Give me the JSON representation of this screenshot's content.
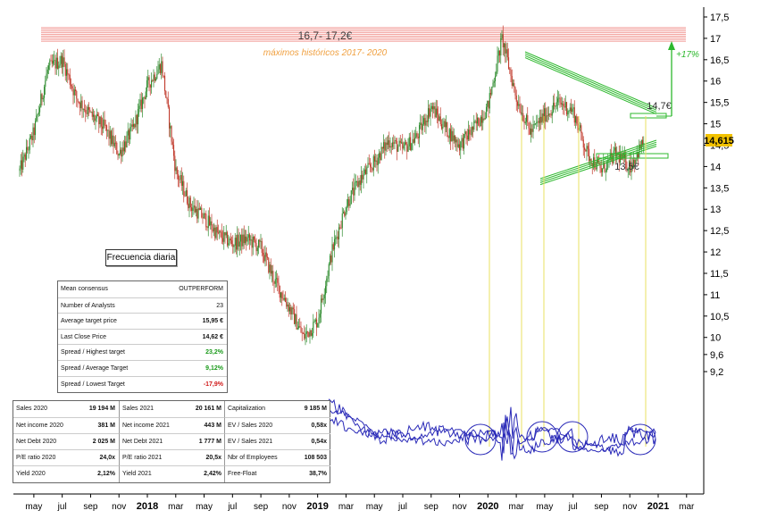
{
  "chart_data": {
    "type": "candlestick",
    "y_axis": {
      "ticks": [
        "17,5",
        "17",
        "16,5",
        "16",
        "15,5",
        "15",
        "14,5",
        "14",
        "13,5",
        "13",
        "12,5",
        "12",
        "11,5",
        "11",
        "10,5",
        "10",
        "9,6",
        "9,2"
      ],
      "range": [
        9.2,
        17.5
      ],
      "current_price_label": "14,615"
    },
    "x_axis": {
      "ticks": [
        "may",
        "jul",
        "sep",
        "nov",
        "2018",
        "mar",
        "may",
        "jul",
        "sep",
        "nov",
        "2019",
        "mar",
        "may",
        "jul",
        "sep",
        "nov",
        "2020",
        "mar",
        "may",
        "jul",
        "sep",
        "nov",
        "2021",
        "mar"
      ],
      "bold_ticks": [
        "2018",
        "2019",
        "2020",
        "2021"
      ]
    },
    "approx_close_series": [
      {
        "date": "2017-04",
        "close": 13.9
      },
      {
        "date": "2017-05",
        "close": 14.8
      },
      {
        "date": "2017-06",
        "close": 16.3
      },
      {
        "date": "2017-07",
        "close": 16.5
      },
      {
        "date": "2017-08",
        "close": 15.6
      },
      {
        "date": "2017-09",
        "close": 15.2
      },
      {
        "date": "2017-10",
        "close": 14.9
      },
      {
        "date": "2017-11",
        "close": 14.3
      },
      {
        "date": "2017-12",
        "close": 14.9
      },
      {
        "date": "2018-01",
        "close": 15.9
      },
      {
        "date": "2018-02",
        "close": 16.4
      },
      {
        "date": "2018-03",
        "close": 13.9
      },
      {
        "date": "2018-04",
        "close": 13.1
      },
      {
        "date": "2018-05",
        "close": 12.8
      },
      {
        "date": "2018-06",
        "close": 12.4
      },
      {
        "date": "2018-07",
        "close": 12.2
      },
      {
        "date": "2018-08",
        "close": 12.3
      },
      {
        "date": "2018-09",
        "close": 12.1
      },
      {
        "date": "2018-10",
        "close": 11.3
      },
      {
        "date": "2018-11",
        "close": 10.7
      },
      {
        "date": "2018-12",
        "close": 10.0
      },
      {
        "date": "2019-01",
        "close": 10.4
      },
      {
        "date": "2019-02",
        "close": 12.0
      },
      {
        "date": "2019-03",
        "close": 13.1
      },
      {
        "date": "2019-04",
        "close": 13.7
      },
      {
        "date": "2019-05",
        "close": 14.1
      },
      {
        "date": "2019-06",
        "close": 14.6
      },
      {
        "date": "2019-07",
        "close": 14.4
      },
      {
        "date": "2019-08",
        "close": 14.7
      },
      {
        "date": "2019-09",
        "close": 15.4
      },
      {
        "date": "2019-10",
        "close": 14.9
      },
      {
        "date": "2019-11",
        "close": 14.5
      },
      {
        "date": "2019-12",
        "close": 14.9
      },
      {
        "date": "2020-01",
        "close": 15.4
      },
      {
        "date": "2020-02",
        "close": 17.0
      },
      {
        "date": "2020-03",
        "close": 15.6
      },
      {
        "date": "2020-04",
        "close": 14.8
      },
      {
        "date": "2020-05",
        "close": 15.2
      },
      {
        "date": "2020-06",
        "close": 15.5
      },
      {
        "date": "2020-07",
        "close": 15.3
      },
      {
        "date": "2020-08",
        "close": 14.3
      },
      {
        "date": "2020-09",
        "close": 13.9
      },
      {
        "date": "2020-10",
        "close": 14.3
      },
      {
        "date": "2020-11",
        "close": 14.0
      },
      {
        "date": "2020-12",
        "close": 14.6
      }
    ],
    "annotations": {
      "resistance_zone_label": "16,7- 17,2€",
      "resistance_zone_sublabel": "máximos históricos 2017- 2020",
      "upper_level_label": "14,7€",
      "lower_level_label": "13,5€",
      "upside_label": "+17%"
    }
  },
  "frequency_label": "Frecuencia diaria",
  "consensus": [
    {
      "label": "Mean consensus",
      "value": "OUTPERFORM",
      "color": "#111111"
    },
    {
      "label": "Number of Analysts",
      "value": "23",
      "color": "#111111"
    },
    {
      "label": "Average target price",
      "value": "15,95 €",
      "color": "#111111"
    },
    {
      "label": "Last Close Price",
      "value": "14,62 €",
      "color": "#111111"
    },
    {
      "label": "Spread / Highest target",
      "value": "23,2%",
      "color": "#1a9a1a"
    },
    {
      "label": "Spread / Average Target",
      "value": "9,12%",
      "color": "#1a9a1a"
    },
    {
      "label": "Spread / Lowest Target",
      "value": "-17,9%",
      "color": "#d01818"
    }
  ],
  "fundamentals": [
    [
      {
        "label": "Sales 2020",
        "value": "19 194 M"
      },
      {
        "label": "Sales 2021",
        "value": "20 161 M"
      },
      {
        "label": "Capitalization",
        "value": "9 185 M"
      }
    ],
    [
      {
        "label": "Net income 2020",
        "value": "381 M"
      },
      {
        "label": "Net income 2021",
        "value": "443 M"
      },
      {
        "label": "EV / Sales 2020",
        "value": "0,58x"
      }
    ],
    [
      {
        "label": "Net Debt 2020",
        "value": "2 025 M"
      },
      {
        "label": "Net Debt 2021",
        "value": "1 777 M"
      },
      {
        "label": "EV / Sales 2021",
        "value": "0,54x"
      }
    ],
    [
      {
        "label": "P/E ratio 2020",
        "value": "24,0x"
      },
      {
        "label": "P/E ratio 2021",
        "value": "20,5x"
      },
      {
        "label": "Nbr of Employees",
        "value": "108 503"
      }
    ],
    [
      {
        "label": "Yield 2020",
        "value": "2,12%"
      },
      {
        "label": "Yield 2021",
        "value": "2,42%"
      },
      {
        "label": "Free-Float",
        "value": "38,7%"
      }
    ]
  ],
  "colors": {
    "candle_up": "#2e8b2e",
    "candle_down": "#c0392b",
    "resistance": "#f08a84",
    "resistance_text": "#f0a040",
    "trendline": "#2db82d",
    "oscillator": "#2a2ab8",
    "price_tag": "#f2c200"
  }
}
